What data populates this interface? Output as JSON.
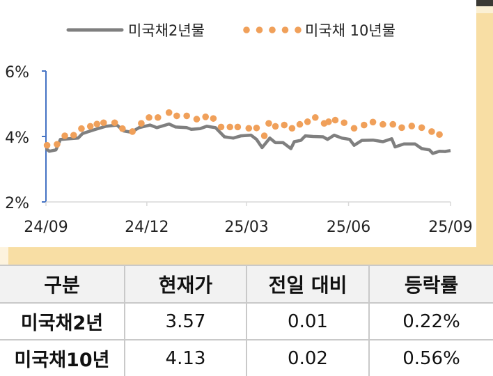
{
  "chart_data": {
    "type": "line",
    "title": "",
    "xlabel": "",
    "ylabel": "",
    "ylim": [
      2,
      6
    ],
    "yticks": [
      "2%",
      "4%",
      "6%"
    ],
    "ytick_values": [
      2,
      4,
      6
    ],
    "xlim": [
      "2024-09-01",
      "2025-09-01"
    ],
    "xticks": [
      "24/09",
      "24/12",
      "25/03",
      "25/06",
      "25/09"
    ],
    "xtick_values": [
      "2024-09-01",
      "2024-12-01",
      "2025-03-01",
      "2025-06-01",
      "2025-09-01"
    ],
    "grid": false,
    "legend_position": "top",
    "series": [
      {
        "name": "미국채2년물",
        "style": "line",
        "color": "#7f7f7f",
        "x": [
          "2024-09-01",
          "2024-09-04",
          "2024-09-10",
          "2024-09-14",
          "2024-09-30",
          "2024-10-04",
          "2024-10-14",
          "2024-10-25",
          "2024-11-04",
          "2024-11-10",
          "2024-11-17",
          "2024-11-24",
          "2024-12-04",
          "2024-12-10",
          "2024-12-21",
          "2024-12-27",
          "2025-01-06",
          "2025-01-10",
          "2025-01-18",
          "2025-01-24",
          "2025-02-01",
          "2025-02-09",
          "2025-02-17",
          "2025-02-24",
          "2025-03-05",
          "2025-03-10",
          "2025-03-15",
          "2025-03-22",
          "2025-03-27",
          "2025-04-03",
          "2025-04-10",
          "2025-04-13",
          "2025-04-19",
          "2025-04-23",
          "2025-04-30",
          "2025-05-09",
          "2025-05-13",
          "2025-05-19",
          "2025-05-26",
          "2025-06-02",
          "2025-06-06",
          "2025-06-13",
          "2025-06-23",
          "2025-07-02",
          "2025-07-10",
          "2025-07-13",
          "2025-07-21",
          "2025-07-31",
          "2025-08-06",
          "2025-08-13",
          "2025-08-16",
          "2025-08-22",
          "2025-08-27",
          "2025-09-01"
        ],
        "y": [
          3.63,
          3.55,
          3.59,
          3.91,
          3.95,
          4.09,
          4.2,
          4.31,
          4.35,
          4.17,
          4.13,
          4.27,
          4.35,
          4.27,
          4.38,
          4.29,
          4.27,
          4.22,
          4.24,
          4.31,
          4.27,
          3.99,
          3.95,
          4.02,
          4.04,
          3.91,
          3.66,
          3.95,
          3.81,
          3.81,
          3.63,
          3.84,
          3.88,
          4.02,
          4.0,
          3.99,
          3.91,
          4.04,
          3.95,
          3.91,
          3.73,
          3.88,
          3.89,
          3.84,
          3.93,
          3.68,
          3.77,
          3.77,
          3.63,
          3.59,
          3.48,
          3.55,
          3.54,
          3.57
        ]
      },
      {
        "name": "미국채 10년물",
        "style": "dots",
        "color": "#f0a05a",
        "x": [
          "2024-09-02",
          "2024-09-11",
          "2024-09-18",
          "2024-09-26",
          "2024-10-03",
          "2024-10-11",
          "2024-10-17",
          "2024-10-23",
          "2024-11-02",
          "2024-11-09",
          "2024-11-18",
          "2024-11-26",
          "2024-12-03",
          "2024-12-11",
          "2024-12-21",
          "2024-12-28",
          "2025-01-06",
          "2025-01-15",
          "2025-01-23",
          "2025-01-30",
          "2025-02-06",
          "2025-02-14",
          "2025-02-21",
          "2025-03-03",
          "2025-03-10",
          "2025-03-17",
          "2025-03-21",
          "2025-03-27",
          "2025-04-04",
          "2025-04-11",
          "2025-04-18",
          "2025-04-25",
          "2025-05-02",
          "2025-05-10",
          "2025-05-14",
          "2025-05-20",
          "2025-05-28",
          "2025-06-06",
          "2025-06-15",
          "2025-06-23",
          "2025-07-02",
          "2025-07-11",
          "2025-07-19",
          "2025-07-28",
          "2025-08-06",
          "2025-08-15",
          "2025-08-22"
        ],
        "y": [
          3.73,
          3.76,
          4.02,
          4.04,
          4.24,
          4.31,
          4.38,
          4.42,
          4.42,
          4.24,
          4.15,
          4.4,
          4.58,
          4.58,
          4.73,
          4.63,
          4.63,
          4.53,
          4.6,
          4.55,
          4.29,
          4.29,
          4.29,
          4.25,
          4.26,
          4.02,
          4.4,
          4.31,
          4.35,
          4.25,
          4.37,
          4.45,
          4.58,
          4.4,
          4.45,
          4.5,
          4.42,
          4.25,
          4.35,
          4.44,
          4.37,
          4.37,
          4.27,
          4.32,
          4.27,
          4.15,
          4.06
        ]
      }
    ]
  },
  "axis_color": "#4472c4",
  "table": {
    "headers": [
      "구분",
      "현재가",
      "전일 대비",
      "등락률"
    ],
    "rows": [
      [
        "미국채2년",
        "3.57",
        "0.01",
        "0.22%"
      ],
      [
        "미국채10년",
        "4.13",
        "0.02",
        "0.56%"
      ]
    ]
  }
}
